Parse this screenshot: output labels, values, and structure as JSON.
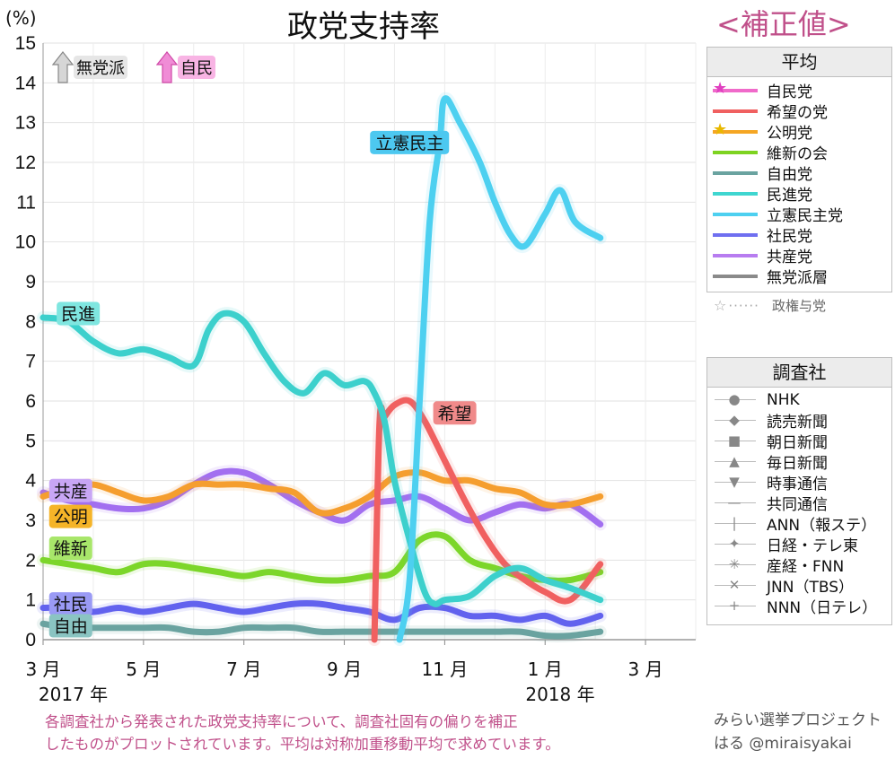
{
  "title": "政党支持率",
  "correction_label": "<補正値>",
  "y_unit": "(%)",
  "legend_average": {
    "title": "平均",
    "items": [
      {
        "label": "自民党",
        "color": "#f06aca",
        "marker": "star-pink"
      },
      {
        "label": "希望の党",
        "color": "#f06060",
        "marker": ""
      },
      {
        "label": "公明党",
        "color": "#f5a623",
        "marker": "star-yellow"
      },
      {
        "label": "維新の会",
        "color": "#7ed321",
        "marker": ""
      },
      {
        "label": "自由党",
        "color": "#6aa3a0",
        "marker": ""
      },
      {
        "label": "民進党",
        "color": "#3fd6d0",
        "marker": ""
      },
      {
        "label": "立憲民主党",
        "color": "#4dd0f0",
        "marker": ""
      },
      {
        "label": "社民党",
        "color": "#6f6ff0",
        "marker": ""
      },
      {
        "label": "共産党",
        "color": "#b77cf0",
        "marker": ""
      },
      {
        "label": "無党派層",
        "color": "#8a8a8a",
        "marker": ""
      }
    ],
    "note": "政権与党"
  },
  "legend_pollsters": {
    "title": "調査社",
    "items": [
      {
        "label": "NHK",
        "symbol": "●"
      },
      {
        "label": "読売新聞",
        "symbol": "◆"
      },
      {
        "label": "朝日新聞",
        "symbol": "■"
      },
      {
        "label": "毎日新聞",
        "symbol": "▲"
      },
      {
        "label": "時事通信",
        "symbol": "▼"
      },
      {
        "label": "共同通信",
        "symbol": "—"
      },
      {
        "label": "ANN（報ステ）",
        "symbol": "|"
      },
      {
        "label": "日経・テレ東",
        "symbol": "✦"
      },
      {
        "label": "産経・FNN",
        "symbol": "✳"
      },
      {
        "label": "JNN（TBS）",
        "symbol": "✕"
      },
      {
        "label": "NNN（日テレ）",
        "symbol": "+"
      }
    ]
  },
  "annotations": {
    "off_chart": [
      {
        "label": "無党派",
        "arrow": "up",
        "color": "#9a9a9a",
        "bg": "#e6e6e6"
      },
      {
        "label": "自民",
        "arrow": "up",
        "color": "#f06aca",
        "bg": "#f8b4e4"
      }
    ],
    "series_tags": [
      {
        "label": "民進",
        "bg": "#7fe6e0"
      },
      {
        "label": "立憲民主",
        "bg": "#4dc8f0"
      },
      {
        "label": "希望",
        "bg": "#f08a8a"
      },
      {
        "label": "共産",
        "bg": "#c8a6f5"
      },
      {
        "label": "公明",
        "bg": "#f5b428"
      },
      {
        "label": "維新",
        "bg": "#a8e66a"
      },
      {
        "label": "社民",
        "bg": "#9a9af5"
      },
      {
        "label": "自由",
        "bg": "#8ac4c2"
      }
    ]
  },
  "footer_note": [
    "各調査社から発表された政党支持率について、調査社固有の偏りを補正",
    "したものがプロットされています。平均は対称加重移動平均で求めています。"
  ],
  "credit": [
    "みらい選挙プロジェクト",
    "はる @miraisyakai"
  ],
  "chart_data": {
    "type": "line",
    "title": "政党支持率",
    "ylabel": "(%)",
    "ylim": [
      0,
      15
    ],
    "xlim": [
      0,
      13
    ],
    "y_ticks": [
      "0",
      "1",
      "2",
      "3",
      "4",
      "5",
      "6",
      "7",
      "8",
      "9",
      "10",
      "11",
      "12",
      "13",
      "14",
      "15"
    ],
    "x_ticks": [
      {
        "x": 0,
        "label": "3 月"
      },
      {
        "x": 2,
        "label": "5 月"
      },
      {
        "x": 4,
        "label": "7 月"
      },
      {
        "x": 6,
        "label": "9 月"
      },
      {
        "x": 8,
        "label": "11 月"
      },
      {
        "x": 10,
        "label": "1 月"
      },
      {
        "x": 12,
        "label": "3 月"
      }
    ],
    "year_labels": [
      {
        "x": 0.6,
        "label": "2017 年"
      },
      {
        "x": 10.3,
        "label": "2018 年"
      }
    ],
    "x_unit": "months since 2017-03-01",
    "series": [
      {
        "name": "民進党",
        "color": "#3cd0cc",
        "x": [
          0,
          0.5,
          1,
          1.5,
          2,
          2.5,
          3,
          3.3,
          3.6,
          4,
          4.4,
          4.8,
          5.2,
          5.6,
          6,
          6.4,
          6.6,
          6.8,
          7,
          7.3,
          7.6,
          7.8,
          8,
          8.5,
          9,
          9.5,
          10,
          10.5,
          11.1
        ],
        "y": [
          8.1,
          8.0,
          7.5,
          7.2,
          7.3,
          7.1,
          6.9,
          7.8,
          8.2,
          8.0,
          7.2,
          6.5,
          6.2,
          6.7,
          6.4,
          6.5,
          6.2,
          5.5,
          4.0,
          2.5,
          1.2,
          0.9,
          1.0,
          1.1,
          1.6,
          1.8,
          1.5,
          1.3,
          1.0
        ]
      },
      {
        "name": "立憲民主党",
        "color": "#4dd0f0",
        "x": [
          7.1,
          7.3,
          7.5,
          7.7,
          7.9,
          8.0,
          8.3,
          8.7,
          9.0,
          9.3,
          9.6,
          10.0,
          10.3,
          10.6,
          11.1
        ],
        "y": [
          0,
          1.5,
          6.0,
          10.5,
          12.5,
          13.6,
          13.0,
          12.0,
          11.0,
          10.2,
          9.9,
          10.7,
          11.3,
          10.5,
          10.1
        ]
      },
      {
        "name": "希望の党",
        "color": "#f06060",
        "x": [
          6.6,
          6.7,
          6.8,
          7.0,
          7.3,
          7.6,
          8.0,
          8.4,
          8.8,
          9.2,
          9.6,
          10.0,
          10.5,
          11.1
        ],
        "y": [
          0,
          5.4,
          5.6,
          5.9,
          6.0,
          5.5,
          4.5,
          3.5,
          2.6,
          1.9,
          1.5,
          1.2,
          1.0,
          1.9
        ]
      },
      {
        "name": "公明党",
        "color": "#f59e2e",
        "x": [
          0,
          0.5,
          1,
          1.5,
          2,
          2.5,
          3,
          3.5,
          4,
          4.5,
          5,
          5.5,
          6,
          6.5,
          7,
          7.5,
          8,
          8.5,
          9,
          9.5,
          10,
          10.5,
          11.1
        ],
        "y": [
          3.6,
          3.8,
          3.9,
          3.7,
          3.5,
          3.6,
          3.9,
          3.9,
          3.9,
          3.8,
          3.7,
          3.2,
          3.3,
          3.6,
          4.1,
          4.2,
          4.0,
          4.0,
          3.8,
          3.7,
          3.4,
          3.4,
          3.6
        ]
      },
      {
        "name": "共産党",
        "color": "#a26ff0",
        "x": [
          0,
          0.5,
          1,
          1.5,
          2,
          2.5,
          3,
          3.5,
          4,
          4.5,
          5,
          5.5,
          6,
          6.5,
          7,
          7.5,
          8,
          8.5,
          9,
          9.5,
          10,
          10.5,
          11.1
        ],
        "y": [
          3.7,
          3.5,
          3.4,
          3.3,
          3.3,
          3.5,
          3.9,
          4.2,
          4.2,
          3.9,
          3.5,
          3.2,
          3.0,
          3.4,
          3.5,
          3.6,
          3.3,
          3.0,
          3.2,
          3.4,
          3.3,
          3.4,
          2.9
        ]
      },
      {
        "name": "維新の会",
        "color": "#7cd62a",
        "x": [
          0,
          0.5,
          1,
          1.5,
          2,
          2.5,
          3,
          3.5,
          4,
          4.5,
          5,
          5.5,
          6,
          6.5,
          7,
          7.5,
          8,
          8.5,
          9,
          9.5,
          10,
          10.5,
          11.1
        ],
        "y": [
          2.0,
          1.9,
          1.8,
          1.7,
          1.9,
          1.9,
          1.8,
          1.7,
          1.6,
          1.7,
          1.6,
          1.5,
          1.5,
          1.6,
          1.7,
          2.5,
          2.6,
          2.0,
          1.8,
          1.6,
          1.5,
          1.5,
          1.7
        ]
      },
      {
        "name": "社民党",
        "color": "#6262ee",
        "x": [
          0,
          0.5,
          1,
          1.5,
          2,
          2.5,
          3,
          3.5,
          4,
          4.5,
          5,
          5.5,
          6,
          6.5,
          7,
          7.5,
          8,
          8.5,
          9,
          9.5,
          10,
          10.5,
          11.1
        ],
        "y": [
          0.8,
          0.8,
          0.7,
          0.8,
          0.7,
          0.8,
          0.9,
          0.8,
          0.7,
          0.8,
          0.9,
          0.9,
          0.8,
          0.7,
          0.5,
          0.8,
          0.8,
          0.6,
          0.6,
          0.5,
          0.6,
          0.4,
          0.6
        ]
      },
      {
        "name": "自由党",
        "color": "#6aa3a0",
        "x": [
          0,
          0.5,
          1,
          1.5,
          2,
          2.5,
          3,
          3.5,
          4,
          4.5,
          5,
          5.5,
          6,
          6.5,
          7,
          7.5,
          8,
          8.5,
          9,
          9.5,
          10,
          10.5,
          11.1
        ],
        "y": [
          0.4,
          0.3,
          0.3,
          0.3,
          0.3,
          0.3,
          0.2,
          0.2,
          0.3,
          0.3,
          0.3,
          0.2,
          0.2,
          0.2,
          0.2,
          0.2,
          0.2,
          0.2,
          0.2,
          0.2,
          0.1,
          0.1,
          0.2
        ]
      }
    ]
  }
}
